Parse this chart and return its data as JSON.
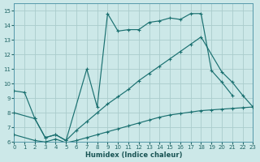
{
  "xlabel": "Humidex (Indice chaleur)",
  "bg_color": "#cce8e8",
  "grid_color": "#aacccc",
  "line_color": "#1a7070",
  "xlim": [
    0,
    23
  ],
  "ylim": [
    6,
    15.5
  ],
  "xticks": [
    0,
    1,
    2,
    3,
    4,
    5,
    6,
    7,
    8,
    9,
    10,
    11,
    12,
    13,
    14,
    15,
    16,
    17,
    18,
    19,
    20,
    21,
    22,
    23
  ],
  "yticks": [
    6,
    7,
    8,
    9,
    10,
    11,
    12,
    13,
    14,
    15
  ],
  "curve1_x": [
    0,
    1,
    2,
    3,
    4,
    5,
    7,
    8,
    9,
    10,
    11,
    12,
    13,
    14,
    15,
    16,
    17,
    18,
    19,
    20,
    21
  ],
  "curve1_y": [
    9.5,
    9.4,
    7.6,
    6.3,
    6.5,
    6.1,
    11.0,
    8.4,
    14.8,
    13.6,
    13.7,
    13.7,
    14.2,
    14.3,
    14.5,
    14.4,
    14.8,
    14.8,
    10.9,
    10.1,
    9.2
  ],
  "curve2_x": [
    0,
    2,
    3,
    4,
    5,
    6,
    7,
    8,
    9,
    10,
    11,
    12,
    13,
    14,
    15,
    16,
    17,
    18,
    20,
    21,
    22,
    23
  ],
  "curve2_y": [
    8.0,
    7.6,
    6.3,
    6.5,
    6.1,
    6.8,
    7.4,
    8.0,
    8.6,
    9.1,
    9.6,
    10.2,
    10.7,
    11.2,
    11.7,
    12.2,
    12.7,
    13.2,
    10.8,
    10.1,
    9.2,
    8.4
  ],
  "curve3_x": [
    0,
    2,
    3,
    4,
    5,
    6,
    7,
    8,
    9,
    10,
    11,
    12,
    13,
    14,
    15,
    16,
    17,
    18,
    19,
    20,
    21,
    22,
    23
  ],
  "curve3_y": [
    6.5,
    6.1,
    6.0,
    6.2,
    5.95,
    6.1,
    6.3,
    6.5,
    6.7,
    6.9,
    7.1,
    7.3,
    7.5,
    7.7,
    7.85,
    7.95,
    8.05,
    8.15,
    8.2,
    8.25,
    8.3,
    8.35,
    8.4
  ]
}
